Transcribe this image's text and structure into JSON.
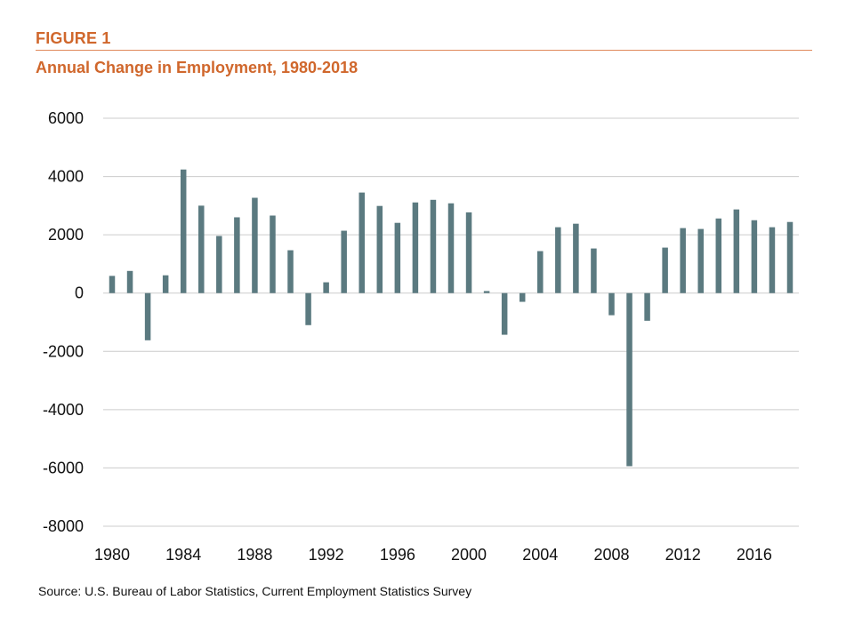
{
  "header": {
    "figure_label": "FIGURE 1",
    "title": "Annual Change in Employment, 1980-2018"
  },
  "footer": {
    "source": "Source: U.S. Bureau of Labor Statistics, Current Employment Statistics Survey"
  },
  "colors": {
    "accent": "#d0672c",
    "bar": "#5b7a80",
    "grid": "#cccccc"
  },
  "chart_data": {
    "type": "bar",
    "title": "Annual Change in Employment, 1980-2018",
    "xlabel": "",
    "ylabel": "",
    "ylim": [
      -8000,
      6000
    ],
    "yticks": [
      6000,
      4000,
      2000,
      0,
      -2000,
      -4000,
      -6000,
      -8000
    ],
    "xtick_labels": [
      "1980",
      "1984",
      "1988",
      "1992",
      "1996",
      "2000",
      "2004",
      "2008",
      "2012",
      "2016"
    ],
    "grid": true,
    "legend": "none",
    "categories": [
      "1980",
      "1981",
      "1982",
      "1983",
      "1984",
      "1985",
      "1986",
      "1987",
      "1988",
      "1989",
      "1990",
      "1991",
      "1992",
      "1993",
      "1994",
      "1995",
      "1996",
      "1997",
      "1998",
      "1999",
      "2000",
      "2001",
      "2002",
      "2003",
      "2004",
      "2005",
      "2006",
      "2007",
      "2008",
      "2009",
      "2010",
      "2011",
      "2012",
      "2013",
      "2014",
      "2015",
      "2016",
      "2017",
      "2018"
    ],
    "values": [
      590,
      760,
      -1620,
      610,
      4240,
      3000,
      1960,
      2600,
      3270,
      2660,
      1470,
      -1100,
      370,
      2140,
      3450,
      2990,
      2410,
      3110,
      3200,
      3080,
      2770,
      70,
      -1430,
      -300,
      1440,
      2260,
      2380,
      1530,
      -760,
      -5940,
      -950,
      1560,
      2230,
      2200,
      2560,
      2870,
      2500,
      2260,
      2440
    ]
  }
}
